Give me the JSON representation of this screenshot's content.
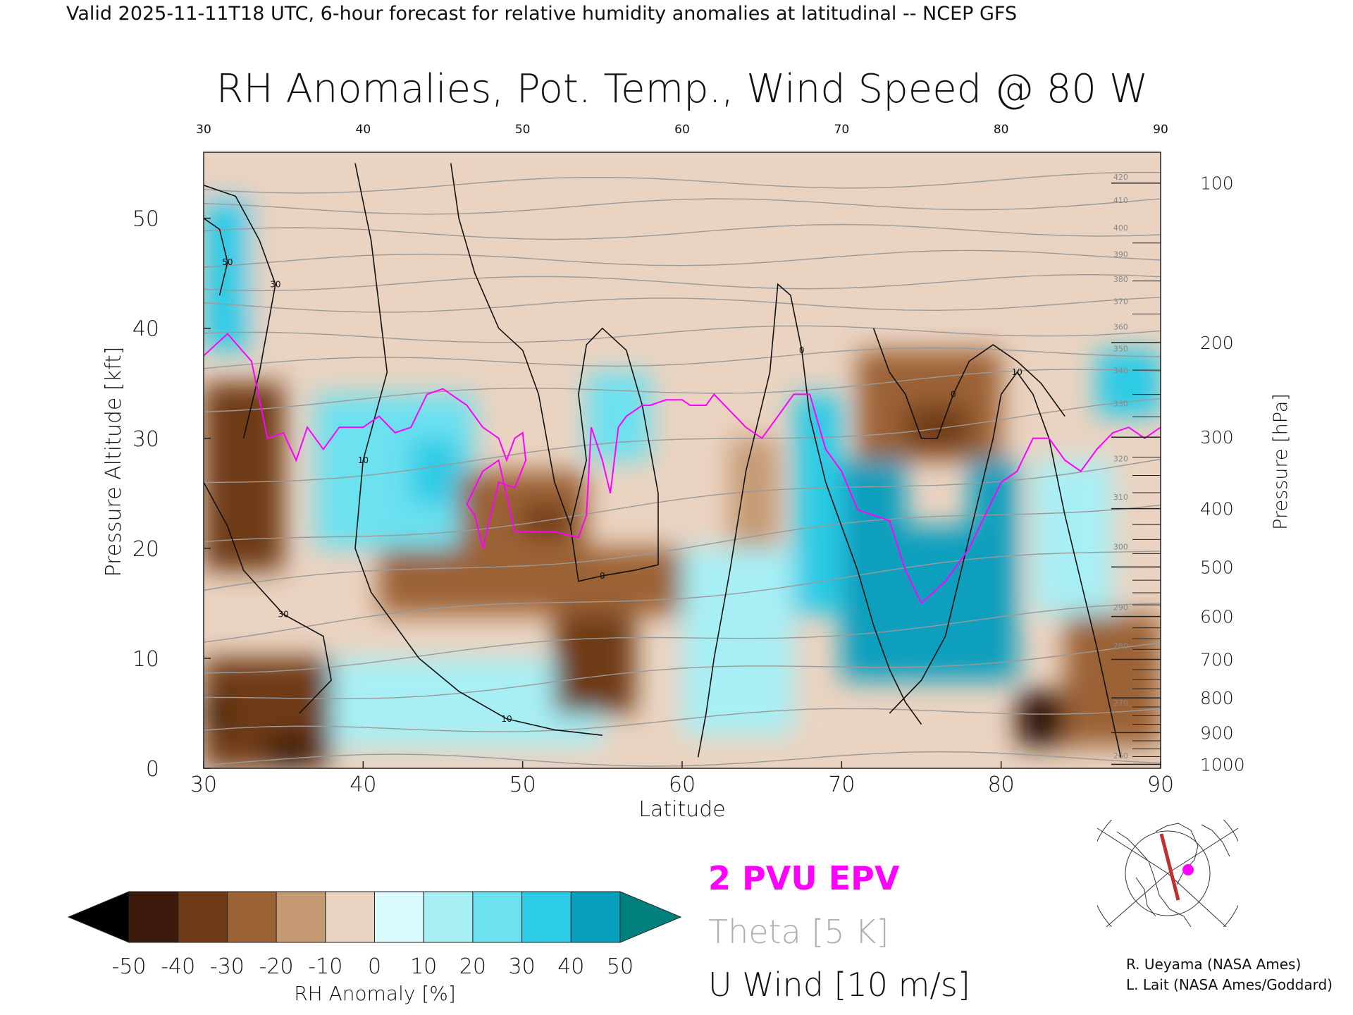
{
  "header": {
    "valid_line": "Valid 2025-11-11T18 UTC, 6-hour forecast for relative humidity anomalies at latitudinal -- NCEP GFS"
  },
  "chart_data": {
    "type": "heatmap",
    "title": "RH Anomalies, Pot. Temp., Wind Speed @ 80 W",
    "xlabel": "Latitude",
    "ylabel_left": "Pressure Altitude [kft]",
    "ylabel_right": "Pressure [hPa]",
    "xlim": [
      30,
      90
    ],
    "ylim": [
      0,
      56
    ],
    "x_ticks": [
      "30",
      "40",
      "50",
      "60",
      "70",
      "80",
      "90"
    ],
    "y_ticks_left": [
      "0",
      "10",
      "20",
      "30",
      "40",
      "50"
    ],
    "y_ticks_right": [
      {
        "p": 1000,
        "label": "1000",
        "kft": 0.36
      },
      {
        "p": 900,
        "label": "900",
        "kft": 3.24
      },
      {
        "p": 800,
        "label": "800",
        "kft": 6.4
      },
      {
        "p": 700,
        "label": "700",
        "kft": 9.9
      },
      {
        "p": 600,
        "label": "600",
        "kft": 13.8
      },
      {
        "p": 500,
        "label": "500",
        "kft": 18.3
      },
      {
        "p": 400,
        "label": "400",
        "kft": 23.6
      },
      {
        "p": 300,
        "label": "300",
        "kft": 30.1
      },
      {
        "p": 200,
        "label": "200",
        "kft": 38.7
      },
      {
        "p": 100,
        "label": "100",
        "kft": 53.2
      }
    ],
    "grid": false,
    "rh_anomaly_regions": [
      {
        "x0": 30,
        "x1": 60,
        "y0": 40,
        "y1": 56,
        "v": -8
      },
      {
        "x0": 60,
        "x1": 90,
        "y0": 42,
        "y1": 56,
        "v": -5
      },
      {
        "x0": 30,
        "x1": 33,
        "y0": 38,
        "y1": 52,
        "v": 32
      },
      {
        "x0": 30,
        "x1": 35,
        "y0": 18,
        "y1": 35,
        "v": -38
      },
      {
        "x0": 30,
        "x1": 38,
        "y0": 0,
        "y1": 10,
        "v": -32
      },
      {
        "x0": 30,
        "x1": 31.5,
        "y0": 4,
        "y1": 6,
        "v": -52
      },
      {
        "x0": 34,
        "x1": 37,
        "y0": 0,
        "y1": 3,
        "v": -45
      },
      {
        "x0": 37,
        "x1": 47,
        "y0": 20,
        "y1": 34,
        "v": 28
      },
      {
        "x0": 43,
        "x1": 46,
        "y0": 24,
        "y1": 30,
        "v": 38
      },
      {
        "x0": 38,
        "x1": 55,
        "y0": 2,
        "y1": 10,
        "v": 18
      },
      {
        "x0": 41,
        "x1": 60,
        "y0": 14,
        "y1": 20,
        "v": -28
      },
      {
        "x0": 46,
        "x1": 54,
        "y0": 20,
        "y1": 27,
        "v": -30
      },
      {
        "x0": 50,
        "x1": 53,
        "y0": 21,
        "y1": 24,
        "v": -40
      },
      {
        "x0": 52,
        "x1": 57,
        "y0": 5,
        "y1": 14,
        "v": -38
      },
      {
        "x0": 54,
        "x1": 58,
        "y0": 28,
        "y1": 36,
        "v": 20
      },
      {
        "x0": 60,
        "x1": 67,
        "y0": 3,
        "y1": 20,
        "v": 15
      },
      {
        "x0": 63,
        "x1": 66,
        "y0": 20,
        "y1": 30,
        "v": -15
      },
      {
        "x0": 67,
        "x1": 70,
        "y0": 14,
        "y1": 34,
        "v": 35
      },
      {
        "x0": 70,
        "x1": 74,
        "y0": 8,
        "y1": 28,
        "v": 46
      },
      {
        "x0": 74,
        "x1": 78,
        "y0": 8,
        "y1": 22,
        "v": 48
      },
      {
        "x0": 78,
        "x1": 81,
        "y0": 8,
        "y1": 28,
        "v": 46
      },
      {
        "x0": 71,
        "x1": 80,
        "y0": 28,
        "y1": 38,
        "v": -25
      },
      {
        "x0": 74,
        "x1": 78,
        "y0": 29,
        "y1": 33,
        "v": -40
      },
      {
        "x0": 81,
        "x1": 84,
        "y0": 2,
        "y1": 7,
        "v": -45
      },
      {
        "x0": 82,
        "x1": 83,
        "y0": 3,
        "y1": 5,
        "v": -55
      },
      {
        "x0": 84,
        "x1": 90,
        "y0": 2,
        "y1": 14,
        "v": -22
      },
      {
        "x0": 82,
        "x1": 87,
        "y0": 14,
        "y1": 28,
        "v": 10
      },
      {
        "x0": 86,
        "x1": 90,
        "y0": 32,
        "y1": 38,
        "v": 35
      }
    ],
    "theta_contours": [
      {
        "label": "260",
        "y0": 0.6,
        "y1": 1.0
      },
      {
        "label": "270",
        "y0": 3.0,
        "y1": 5.8
      },
      {
        "label": "280",
        "y0": 6.0,
        "y1": 11.0
      },
      {
        "label": "290",
        "y0": 9.0,
        "y1": 14.5
      },
      {
        "label": "300",
        "y0": 12.0,
        "y1": 20.0
      },
      {
        "label": "310",
        "y0": 16.0,
        "y1": 24.5
      },
      {
        "label": "320",
        "y0": 20.0,
        "y1": 28.0
      },
      {
        "label": "330",
        "y0": 26.0,
        "y1": 33.0
      },
      {
        "label": "340",
        "y0": 33.0,
        "y1": 36.0
      },
      {
        "label": "350",
        "y0": 36.5,
        "y1": 38.0
      },
      {
        "label": "360",
        "y0": 39.0,
        "y1": 40.0
      },
      {
        "label": "370",
        "y0": 42.0,
        "y1": 42.3
      },
      {
        "label": "380",
        "y0": 44.0,
        "y1": 44.3
      },
      {
        "label": "390",
        "y0": 46.0,
        "y1": 46.6
      },
      {
        "label": "400",
        "y0": 48.5,
        "y1": 49.0
      },
      {
        "label": "410",
        "y0": 50.8,
        "y1": 51.5
      },
      {
        "label": "420",
        "y0": 52.8,
        "y1": 53.6
      }
    ],
    "epv_2pvu": [
      [
        30,
        37.5
      ],
      [
        31.5,
        39.5
      ],
      [
        33,
        37
      ],
      [
        34,
        30
      ],
      [
        35,
        30.5
      ],
      [
        35.8,
        28
      ],
      [
        36.5,
        31
      ],
      [
        37.5,
        29
      ],
      [
        38.5,
        31
      ],
      [
        40,
        31
      ],
      [
        41,
        32
      ],
      [
        42,
        30.5
      ],
      [
        43,
        31
      ],
      [
        44,
        34
      ],
      [
        45,
        34.5
      ],
      [
        46.5,
        33
      ],
      [
        47.5,
        31
      ],
      [
        48.5,
        30
      ],
      [
        49,
        28
      ],
      [
        49.5,
        30
      ],
      [
        50,
        30.5
      ],
      [
        50.2,
        28
      ],
      [
        49.5,
        25.5
      ],
      [
        48.5,
        26
      ],
      [
        47.5,
        20
      ],
      [
        47,
        23
      ],
      [
        46.5,
        24
      ],
      [
        47.5,
        27
      ],
      [
        48.5,
        28
      ],
      [
        49.5,
        21.5
      ],
      [
        51,
        21.5
      ],
      [
        52,
        21.5
      ],
      [
        53.5,
        21
      ],
      [
        54,
        23
      ],
      [
        54.3,
        31
      ],
      [
        55,
        28
      ],
      [
        55.5,
        25
      ],
      [
        56,
        31
      ],
      [
        56.5,
        32
      ],
      [
        57.5,
        33
      ],
      [
        58,
        33
      ],
      [
        59,
        33.5
      ],
      [
        60,
        33.5
      ],
      [
        60.5,
        33
      ],
      [
        61.5,
        33
      ],
      [
        62,
        34
      ],
      [
        63,
        32.5
      ],
      [
        64,
        31
      ],
      [
        65,
        30
      ],
      [
        67,
        34
      ],
      [
        68,
        34
      ],
      [
        69,
        29
      ],
      [
        70,
        27
      ],
      [
        71,
        23.5
      ],
      [
        73,
        22.5
      ],
      [
        74,
        18
      ],
      [
        75,
        15
      ],
      [
        76.5,
        17
      ],
      [
        78,
        20
      ],
      [
        79,
        23
      ],
      [
        80,
        26
      ],
      [
        81,
        27
      ],
      [
        82,
        30
      ],
      [
        83,
        30
      ],
      [
        84,
        28
      ],
      [
        85,
        27
      ],
      [
        86,
        29
      ],
      [
        87,
        30.5
      ],
      [
        88,
        31
      ],
      [
        89,
        30
      ],
      [
        90,
        31
      ]
    ],
    "u_wind_contours": [
      {
        "label": "10",
        "pts": [
          [
            39.5,
            55
          ],
          [
            40.5,
            48
          ],
          [
            41,
            42
          ],
          [
            41.5,
            36
          ],
          [
            40,
            28
          ],
          [
            39.5,
            20
          ],
          [
            40.5,
            16
          ],
          [
            42,
            13
          ],
          [
            43.5,
            10
          ]
        ]
      },
      {
        "label": "10",
        "pts": [
          [
            43.5,
            10
          ],
          [
            46,
            7
          ],
          [
            49,
            4.5
          ],
          [
            52,
            3.5
          ],
          [
            55,
            3
          ]
        ]
      },
      {
        "label": "30",
        "pts": [
          [
            30,
            53
          ],
          [
            32,
            52
          ],
          [
            33.5,
            48
          ],
          [
            34.5,
            44
          ],
          [
            33.5,
            36
          ],
          [
            32.5,
            30
          ]
        ]
      },
      {
        "label": "50",
        "pts": [
          [
            30,
            50
          ],
          [
            31,
            49
          ],
          [
            31.5,
            46
          ],
          [
            31,
            43
          ]
        ]
      },
      {
        "label": "30",
        "pts": [
          [
            30,
            26
          ],
          [
            31.5,
            22
          ],
          [
            32.5,
            18
          ],
          [
            35,
            14
          ],
          [
            37.5,
            12
          ],
          [
            38,
            8
          ],
          [
            36,
            5
          ]
        ]
      },
      {
        "label": "0",
        "pts": [
          [
            45.5,
            55
          ],
          [
            46,
            50
          ],
          [
            47,
            45
          ],
          [
            48.5,
            40
          ],
          [
            50,
            38
          ],
          [
            51,
            34
          ],
          [
            51.5,
            30
          ],
          [
            52,
            26
          ],
          [
            53,
            22
          ],
          [
            53.5,
            17
          ],
          [
            55,
            17.5
          ],
          [
            57,
            18
          ],
          [
            58.5,
            18.5
          ],
          [
            58.5,
            25
          ],
          [
            57.5,
            33
          ],
          [
            56.5,
            38
          ],
          [
            55,
            40
          ],
          [
            54,
            38.5
          ],
          [
            53.5,
            34
          ],
          [
            54,
            28
          ],
          [
            53,
            22
          ]
        ]
      },
      {
        "label": "0",
        "pts": [
          [
            61,
            1
          ],
          [
            61.5,
            5
          ],
          [
            62,
            10
          ],
          [
            63,
            18
          ],
          [
            64,
            27
          ],
          [
            65.5,
            36
          ],
          [
            66,
            44
          ],
          [
            66.8,
            43
          ],
          [
            67.5,
            38
          ],
          [
            68,
            32
          ],
          [
            69,
            26
          ],
          [
            70,
            22
          ],
          [
            71,
            18
          ],
          [
            72,
            13
          ],
          [
            73,
            9
          ],
          [
            74,
            6
          ],
          [
            75,
            4
          ]
        ]
      },
      {
        "label": "10",
        "pts": [
          [
            73,
            5
          ],
          [
            75,
            8
          ],
          [
            76.5,
            12
          ],
          [
            77.5,
            18
          ],
          [
            78.5,
            24
          ],
          [
            79.5,
            30
          ],
          [
            80,
            34
          ],
          [
            81,
            36
          ],
          [
            82,
            34
          ],
          [
            83,
            30
          ],
          [
            84,
            23
          ],
          [
            85,
            17
          ],
          [
            86,
            11
          ],
          [
            87.5,
            1
          ]
        ]
      },
      {
        "label": "0",
        "pts": [
          [
            72,
            40
          ],
          [
            73,
            36
          ],
          [
            74,
            34
          ],
          [
            75,
            30
          ],
          [
            76,
            30
          ],
          [
            77,
            34
          ],
          [
            78,
            37
          ],
          [
            79.5,
            38.5
          ],
          [
            81,
            37
          ],
          [
            82.5,
            35
          ],
          [
            84,
            32
          ]
        ]
      }
    ]
  },
  "axes": {
    "x_ticks_top": [
      "30",
      "40",
      "50",
      "60",
      "70",
      "80",
      "90"
    ]
  },
  "colorbar": {
    "levels": [
      "-50",
      "-40",
      "-30",
      "-20",
      "-10",
      "0",
      "10",
      "20",
      "30",
      "40",
      "50"
    ],
    "label": "RH Anomaly [%]",
    "colors": [
      "#000000",
      "#3b1a0b",
      "#6e3a16",
      "#9b6235",
      "#c59a73",
      "#ead3c1",
      "#d9fbfd",
      "#a8eff5",
      "#6ce1f0",
      "#2ccbe6",
      "#089fbd",
      "#00807c"
    ]
  },
  "legend": {
    "epv_label": "2 PVU EPV",
    "theta_label": "Theta [5 K]",
    "wind_label": "U Wind [10 m/s]",
    "epv_color": "#ff00ff",
    "theta_color": "#b0b0b0",
    "wind_color": "#111111"
  },
  "credits": {
    "line1": "R. Ueyama (NASA Ames)",
    "line2": "L. Lait (NASA Ames/Goddard)"
  },
  "inset": {
    "section_color": "#c03030",
    "dot_color": "#ff00ff"
  }
}
